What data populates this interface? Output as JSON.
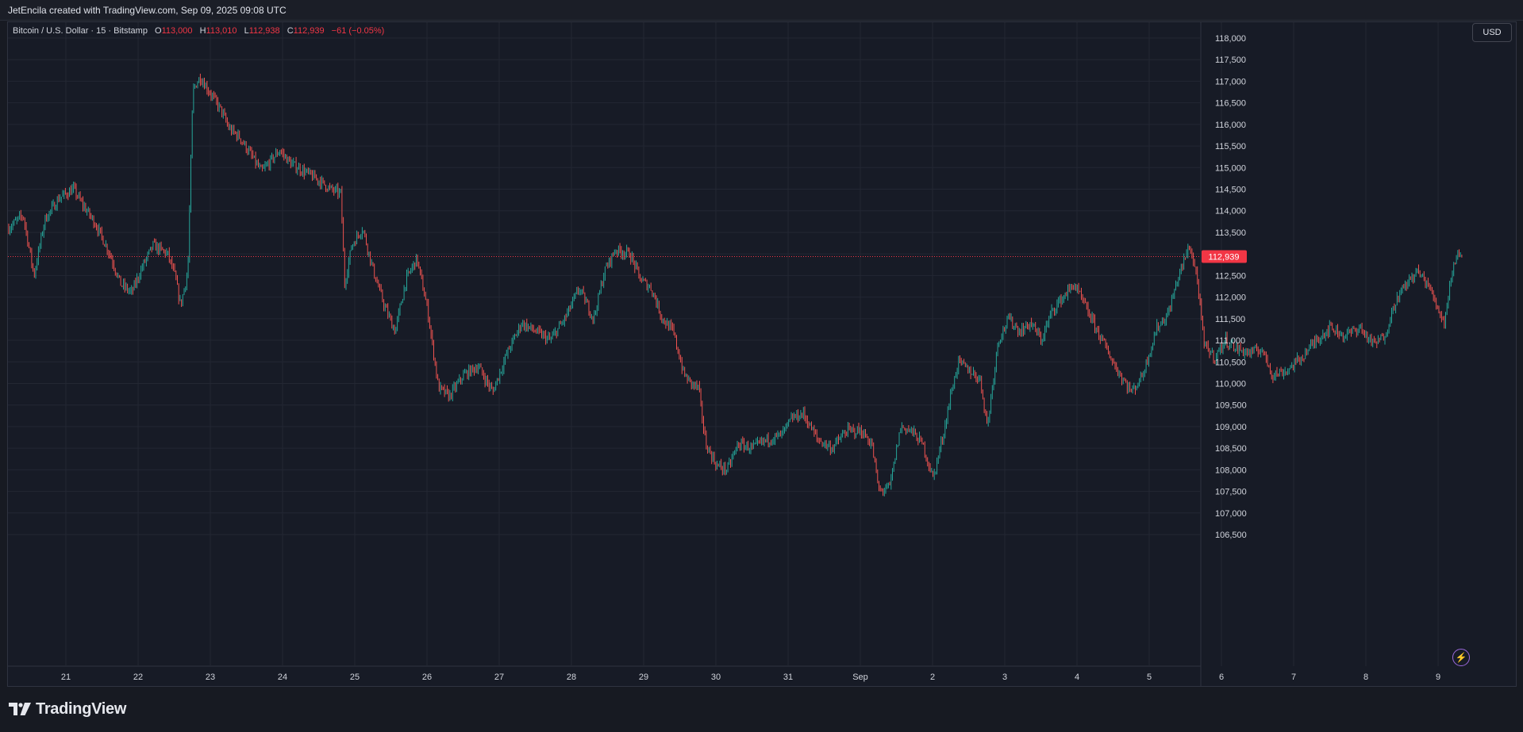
{
  "header": {
    "text": "JetEncila created with TradingView.com, Sep 09, 2025 09:08 UTC"
  },
  "legend": {
    "symbol": "Bitcoin / U.S. Dollar · 15 · Bitstamp",
    "o_label": "O",
    "o_value": "113,000",
    "h_label": "H",
    "h_value": "113,010",
    "l_label": "L",
    "l_value": "112,938",
    "c_label": "C",
    "c_value": "112,939",
    "change": "−61 (−0.05%)"
  },
  "currency_button": "USD",
  "brand": {
    "name": "TradingView"
  },
  "colors": {
    "up": "#26a69a",
    "down": "#ef5350",
    "background": "#171b26",
    "grid": "#232733",
    "price_tag": "#f23645"
  },
  "icons": {
    "lightning": "lightning-icon",
    "logo": "tradingview-logo-icon"
  },
  "chart_data": {
    "type": "candlestick",
    "price_axis_labels": [
      "118,000",
      "117,500",
      "117,000",
      "116,500",
      "116,000",
      "115,500",
      "115,000",
      "114,500",
      "114,000",
      "113,500",
      "113,000",
      "112,500",
      "112,000",
      "111,500",
      "111,000",
      "110,500",
      "110,000",
      "109,500",
      "109,000",
      "108,500",
      "108,000",
      "107,500",
      "107,000",
      "106,500"
    ],
    "y_range": [
      106300,
      118250
    ],
    "time_axis_labels": [
      "21",
      "22",
      "23",
      "24",
      "25",
      "26",
      "27",
      "28",
      "29",
      "30",
      "31",
      "Sep",
      "2",
      "3",
      "4",
      "5",
      "6",
      "7",
      "8",
      "9"
    ],
    "current_price": 112939,
    "current_price_label": "112,939",
    "price_path": [
      [
        0.0,
        113600
      ],
      [
        0.2,
        113900
      ],
      [
        0.35,
        112500
      ],
      [
        0.5,
        113800
      ],
      [
        0.7,
        114300
      ],
      [
        0.9,
        114500
      ],
      [
        1.0,
        114200
      ],
      [
        1.2,
        113700
      ],
      [
        1.4,
        113000
      ],
      [
        1.55,
        112300
      ],
      [
        1.7,
        112100
      ],
      [
        1.85,
        112700
      ],
      [
        2.0,
        113200
      ],
      [
        2.2,
        113000
      ],
      [
        2.3,
        112500
      ],
      [
        2.38,
        111800
      ],
      [
        2.48,
        112600
      ],
      [
        2.55,
        116800
      ],
      [
        2.65,
        117100
      ],
      [
        2.8,
        116700
      ],
      [
        2.95,
        116300
      ],
      [
        3.05,
        115900
      ],
      [
        3.2,
        115700
      ],
      [
        3.35,
        115300
      ],
      [
        3.5,
        114900
      ],
      [
        3.6,
        115100
      ],
      [
        3.75,
        115400
      ],
      [
        3.9,
        115100
      ],
      [
        4.1,
        114900
      ],
      [
        4.3,
        114700
      ],
      [
        4.45,
        114500
      ],
      [
        4.6,
        114400
      ],
      [
        4.65,
        112300
      ],
      [
        4.75,
        113200
      ],
      [
        4.9,
        113600
      ],
      [
        5.05,
        112600
      ],
      [
        5.2,
        111800
      ],
      [
        5.35,
        111200
      ],
      [
        5.5,
        112400
      ],
      [
        5.65,
        112900
      ],
      [
        5.8,
        111700
      ],
      [
        5.95,
        109900
      ],
      [
        6.1,
        109700
      ],
      [
        6.3,
        110200
      ],
      [
        6.5,
        110400
      ],
      [
        6.7,
        109800
      ],
      [
        6.9,
        110700
      ],
      [
        7.1,
        111400
      ],
      [
        7.3,
        111200
      ],
      [
        7.5,
        111000
      ],
      [
        7.7,
        111500
      ],
      [
        7.9,
        112200
      ],
      [
        8.1,
        111500
      ],
      [
        8.25,
        112600
      ],
      [
        8.4,
        113100
      ],
      [
        8.6,
        113000
      ],
      [
        8.75,
        112400
      ],
      [
        8.9,
        112200
      ],
      [
        9.05,
        111500
      ],
      [
        9.2,
        111200
      ],
      [
        9.35,
        110200
      ],
      [
        9.45,
        110000
      ],
      [
        9.55,
        109900
      ],
      [
        9.65,
        108600
      ],
      [
        9.8,
        108100
      ],
      [
        9.95,
        108000
      ],
      [
        10.1,
        108600
      ],
      [
        10.3,
        108500
      ],
      [
        10.5,
        108700
      ],
      [
        10.7,
        108800
      ],
      [
        10.85,
        109200
      ],
      [
        11.0,
        109300
      ],
      [
        11.2,
        108700
      ],
      [
        11.4,
        108500
      ],
      [
        11.6,
        108900
      ],
      [
        11.8,
        108900
      ],
      [
        11.95,
        108600
      ],
      [
        12.05,
        107500
      ],
      [
        12.2,
        107600
      ],
      [
        12.35,
        109000
      ],
      [
        12.5,
        108900
      ],
      [
        12.65,
        108600
      ],
      [
        12.8,
        107800
      ],
      [
        12.95,
        108900
      ],
      [
        13.05,
        109800
      ],
      [
        13.15,
        110500
      ],
      [
        13.3,
        110300
      ],
      [
        13.45,
        110100
      ],
      [
        13.55,
        109000
      ],
      [
        13.7,
        111000
      ],
      [
        13.85,
        111500
      ],
      [
        14.0,
        111200
      ],
      [
        14.15,
        111400
      ],
      [
        14.3,
        111000
      ],
      [
        14.45,
        111700
      ],
      [
        14.6,
        112000
      ],
      [
        14.75,
        112300
      ],
      [
        14.9,
        111800
      ],
      [
        15.05,
        111300
      ],
      [
        15.2,
        110800
      ],
      [
        15.35,
        110300
      ],
      [
        15.55,
        109800
      ],
      [
        15.7,
        110200
      ],
      [
        15.9,
        111300
      ],
      [
        16.05,
        111600
      ],
      [
        16.2,
        112500
      ],
      [
        16.35,
        113200
      ],
      [
        16.45,
        112500
      ],
      [
        16.55,
        110900
      ],
      [
        16.7,
        110600
      ],
      [
        16.85,
        111000
      ],
      [
        17.0,
        110800
      ],
      [
        17.2,
        110700
      ],
      [
        17.35,
        110800
      ],
      [
        17.5,
        110200
      ],
      [
        17.7,
        110300
      ],
      [
        17.9,
        110600
      ],
      [
        18.1,
        111000
      ],
      [
        18.3,
        111300
      ],
      [
        18.5,
        111100
      ],
      [
        18.7,
        111300
      ],
      [
        18.9,
        110900
      ],
      [
        19.05,
        111100
      ],
      [
        19.2,
        111900
      ],
      [
        19.35,
        112300
      ],
      [
        19.5,
        112600
      ],
      [
        19.65,
        112300
      ],
      [
        19.8,
        111700
      ],
      [
        19.88,
        111400
      ],
      [
        19.95,
        112300
      ],
      [
        20.05,
        113000
      ],
      [
        20.12,
        112939
      ]
    ]
  }
}
